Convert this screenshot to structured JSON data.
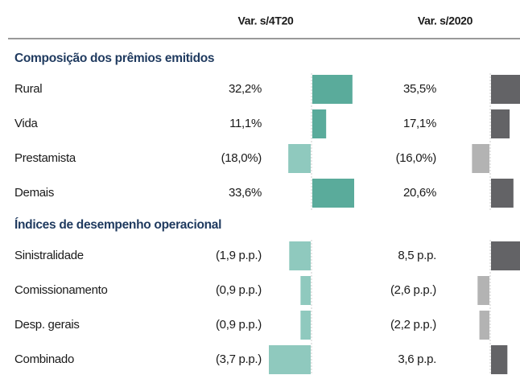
{
  "table": {
    "columns": [
      "Var. s/4T20",
      "Var. s/2020"
    ],
    "sections": [
      {
        "title": "Composição dos prêmios emitidos",
        "rows": [
          {
            "label": "Rural",
            "values": [
              32.2,
              35.5
            ],
            "value_labels": [
              "32,2%",
              "35,5%"
            ]
          },
          {
            "label": "Vida",
            "values": [
              11.1,
              17.1
            ],
            "value_labels": [
              "11,1%",
              "17,1%"
            ]
          },
          {
            "label": "Prestamista",
            "values": [
              -18.0,
              -16.0
            ],
            "value_labels": [
              "(18,0%)",
              "(16,0%)"
            ]
          },
          {
            "label": "Demais",
            "values": [
              33.6,
              20.6
            ],
            "value_labels": [
              "33,6%",
              "20,6%"
            ]
          }
        ]
      },
      {
        "title": "Índices de desempenho operacional",
        "rows": [
          {
            "label": "Sinistralidade",
            "values": [
              -1.9,
              8.5
            ],
            "value_labels": [
              "(1,9 p.p.)",
              "8,5 p.p."
            ]
          },
          {
            "label": "Comissionamento",
            "values": [
              -0.9,
              -2.6
            ],
            "value_labels": [
              "(0,9 p.p.)",
              "(2,6 p.p.)"
            ]
          },
          {
            "label": "Desp. gerais",
            "values": [
              -0.9,
              -2.2
            ],
            "value_labels": [
              "(0,9 p.p.)",
              "(2,2 p.p.)"
            ]
          },
          {
            "label": "Combinado",
            "values": [
              -3.7,
              3.6
            ],
            "value_labels": [
              "(3,7 p.p.)",
              "3,6 p.p."
            ]
          }
        ]
      }
    ]
  }
}
